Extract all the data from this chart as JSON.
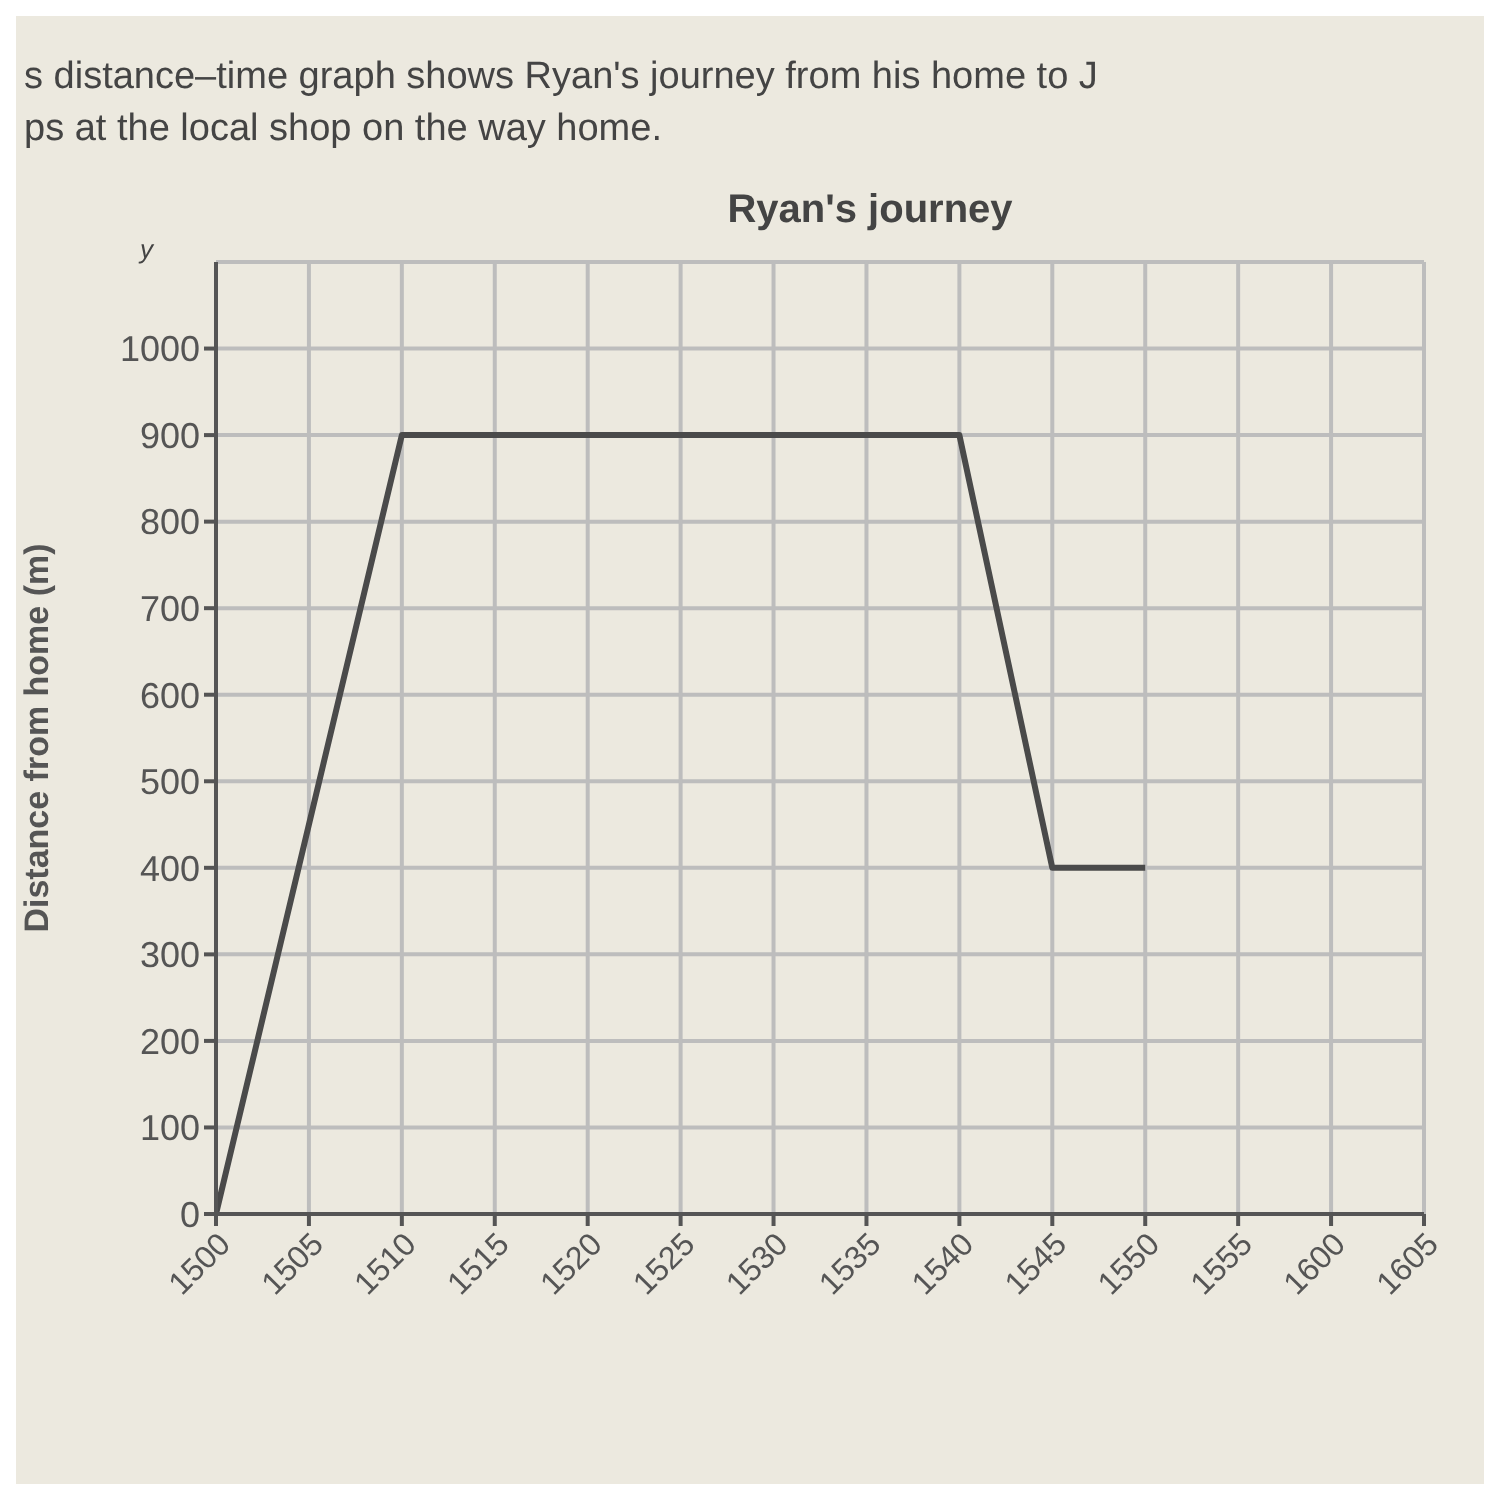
{
  "chart_data": {
    "type": "line",
    "title": "Ryan's journey",
    "ylabel": "Distance from home (m)",
    "annotations": [
      "s distance–time graph shows Ryan's journey from his home to J",
      "ps at the local shop on the way home.",
      "y"
    ],
    "categories": [
      "1500",
      "1505",
      "1510",
      "1515",
      "1520",
      "1525",
      "1530",
      "1535",
      "1540",
      "1545",
      "1550",
      "1555",
      "1600",
      "1605"
    ],
    "series": [
      {
        "color": "#4a4a4a",
        "values": [
          0,
          null,
          900,
          null,
          null,
          null,
          null,
          null,
          900,
          400,
          400,
          null,
          null,
          null
        ]
      }
    ],
    "ylim": [
      0,
      1100
    ],
    "yticks": [
      0,
      100,
      200,
      300,
      400,
      500,
      600,
      700,
      800,
      900,
      1000
    ],
    "grid": true,
    "marker": "none",
    "line_style": "solid",
    "legend": false
  }
}
